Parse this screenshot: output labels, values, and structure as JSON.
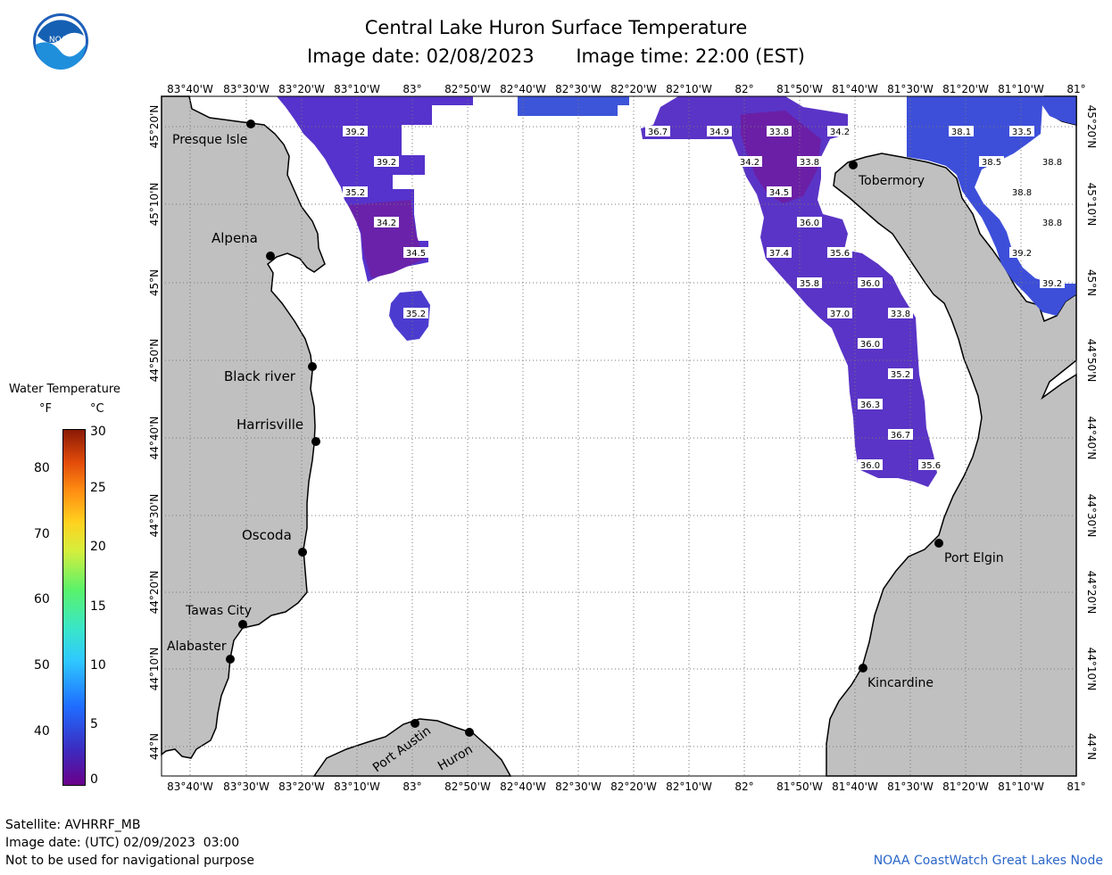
{
  "header": {
    "title": "Central Lake Huron Surface Temperature",
    "image_date_label": "Image date: 02/08/2023",
    "image_time_label": "Image time: 22:00 (EST)"
  },
  "logo": {
    "text": "NOAA",
    "icon": "noaa-logo-icon"
  },
  "map": {
    "lon_labels": [
      "83°40'W",
      "83°30'W",
      "83°20'W",
      "83°10'W",
      "83°",
      "82°50'W",
      "82°40'W",
      "82°30'W",
      "82°20'W",
      "82°10'W",
      "82°",
      "81°50'W",
      "81°40'W",
      "81°30'W",
      "81°20'W",
      "81°10'W",
      "81°"
    ],
    "lat_labels": [
      "45°20'N",
      "45°10'N",
      "45°N",
      "44°50'N",
      "44°40'N",
      "44°30'N",
      "44°20'N",
      "44°10'N",
      "44°N"
    ],
    "places": [
      {
        "name": "Presque Isle"
      },
      {
        "name": "Alpena"
      },
      {
        "name": "Black river"
      },
      {
        "name": "Harrisville"
      },
      {
        "name": "Oscoda"
      },
      {
        "name": "Tawas City"
      },
      {
        "name": "Alabaster"
      },
      {
        "name": "Port Austin"
      },
      {
        "name": "Huron"
      },
      {
        "name": "Tobermory"
      },
      {
        "name": "Port Elgin"
      },
      {
        "name": "Kincardine"
      }
    ],
    "temperature_labels": [
      "39.2",
      "39.2",
      "35.2",
      "34.2",
      "34.5",
      "35.2",
      "36.7",
      "34.9",
      "33.8",
      "34.2",
      "34.2",
      "33.8",
      "34.5",
      "36.0",
      "37.4",
      "35.6",
      "35.8",
      "36.0",
      "37.0",
      "33.8",
      "36.0",
      "35.2",
      "36.3",
      "36.7",
      "36.0",
      "35.6",
      "38.1",
      "33.5",
      "38.5",
      "38.8",
      "38.8",
      "38.8",
      "39.2",
      "39.2"
    ],
    "colors": {
      "land": "#c0c0c0",
      "water": "#ffffff",
      "cold_water": "#5a2fc4",
      "colder_water": "#6a1fa8",
      "warm_water": "#3d4fd9"
    }
  },
  "legend": {
    "title": "Water Temperature",
    "unit_f": "°F",
    "unit_c": "°C",
    "f_ticks": [
      "80",
      "70",
      "60",
      "50",
      "40"
    ],
    "c_ticks": [
      "30",
      "25",
      "20",
      "15",
      "10",
      "5",
      "0"
    ]
  },
  "footer": {
    "satellite": "Satellite: AVHRRF_MB",
    "utc_date": "Image date: (UTC) 02/09/2023  03:00",
    "disclaimer": "Not to be used for navigational purpose",
    "credit": "NOAA CoastWatch Great Lakes Node"
  }
}
